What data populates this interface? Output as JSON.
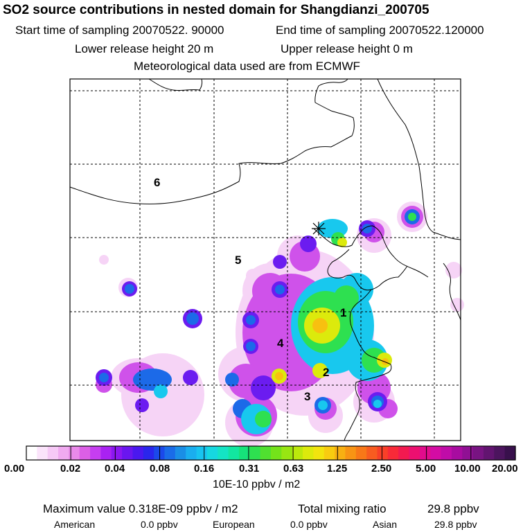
{
  "header": {
    "title": "SO2 source contributions in nested domain for Shangdianzi_200705",
    "start_label": "Start time of sampling 20070522. 90000",
    "end_label": "End time of sampling 20070522.120000",
    "lower_label": "Lower release height   20 m",
    "upper_label": "Upper release height    0 m",
    "met_label": "Meteorological data used are from ECMWF"
  },
  "regions": [
    "1",
    "2",
    "3",
    "4",
    "5",
    "6"
  ],
  "colorbar": {
    "ticks": [
      "0.00",
      "0.02",
      "0.04",
      "0.08",
      "0.16",
      "0.31",
      "0.63",
      "1.25",
      "2.50",
      "5.00",
      "10.00",
      "20.00"
    ],
    "units": "10E-10 ppbv / m2",
    "colors": [
      "#ffffff",
      "#fbe4fb",
      "#f6c9f6",
      "#f0aaf0",
      "#e98ae9",
      "#dc5fe6",
      "#c63ef0",
      "#a922f2",
      "#8b17f0",
      "#6a16ef",
      "#4a18ef",
      "#2a26ec",
      "#1b49ea",
      "#1a6ce8",
      "#1a8ee6",
      "#1aaeef",
      "#18c4f0",
      "#16d8e0",
      "#14e4c4",
      "#12e6a0",
      "#16e27a",
      "#2ee050",
      "#50e030",
      "#74e21a",
      "#98e612",
      "#bce80c",
      "#dcea0c",
      "#f2e40e",
      "#f8cc10",
      "#f8b012",
      "#f89414",
      "#f87818",
      "#f85c20",
      "#f84028",
      "#f82a38",
      "#f21a50",
      "#ec1070",
      "#e20c8c",
      "#d40ca4",
      "#c00ca8",
      "#a80ca0",
      "#901094",
      "#781482",
      "#621470",
      "#4c145e",
      "#38104c"
    ]
  },
  "footer": {
    "max_label": "Maximum value  0.318E-09 ppbv / m2",
    "total_label": "Total mixing ratio",
    "total_value": "29.8 ppbv",
    "american_label": "American",
    "american_value": "0.0 ppbv",
    "european_label": "European",
    "european_value": "0.0 ppbv",
    "asian_label": "Asian",
    "asian_value": "29.8 ppbv"
  }
}
